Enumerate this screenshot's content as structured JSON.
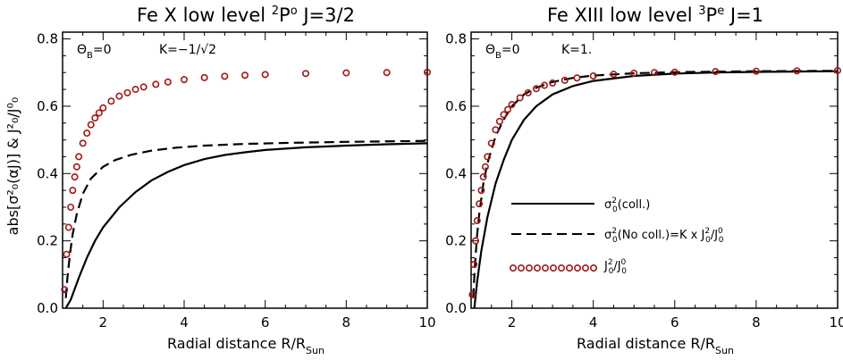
{
  "chart_data": [
    {
      "type": "line",
      "title_parts": {
        "pre": "Fe X   low level   ",
        "sup": "2",
        "main": "P",
        "sup2": "o",
        "post": "   J=3/2"
      },
      "xlabel": {
        "main": "Radial distance R/R",
        "sub": "Sun"
      },
      "ylabel": "abs[σ²₀(αJ)]  &  J²₀/J⁰₀",
      "xlim": [
        1,
        10
      ],
      "ylim": [
        0,
        0.82
      ],
      "x_ticks": [
        2,
        4,
        6,
        8,
        10
      ],
      "y_ticks": [
        0.0,
        0.2,
        0.4,
        0.6,
        0.8
      ],
      "y_tick_labels": [
        "0.0",
        "0.2",
        "0.4",
        "0.6",
        "0.8"
      ],
      "annotation": {
        "theta": "Θ",
        "theta_sub": "B",
        "theta_eq": "=0",
        "k_text": "K=−1/√2"
      },
      "series": [
        {
          "name": "σ²₀(coll.)",
          "style": "solid",
          "color": "#000000",
          "x": [
            1.08,
            1.2,
            1.4,
            1.6,
            1.8,
            2.0,
            2.4,
            2.8,
            3.2,
            3.6,
            4.0,
            4.5,
            5.0,
            5.5,
            6.0,
            7.0,
            8.0,
            9.0,
            10.0
          ],
          "values": [
            0.0,
            0.025,
            0.09,
            0.15,
            0.2,
            0.24,
            0.3,
            0.345,
            0.38,
            0.405,
            0.425,
            0.443,
            0.455,
            0.463,
            0.47,
            0.478,
            0.483,
            0.487,
            0.49
          ]
        },
        {
          "name": "σ²₀(No coll.)=K x J²₀/J⁰₀",
          "style": "dashed",
          "color": "#000000",
          "x": [
            1.08,
            1.12,
            1.18,
            1.25,
            1.35,
            1.5,
            1.7,
            2.0,
            2.3,
            2.7,
            3.2,
            3.8,
            4.5,
            5.5,
            6.5,
            8.0,
            10.0
          ],
          "values": [
            0.03,
            0.09,
            0.16,
            0.22,
            0.28,
            0.34,
            0.385,
            0.42,
            0.44,
            0.456,
            0.468,
            0.477,
            0.483,
            0.488,
            0.491,
            0.494,
            0.497
          ]
        },
        {
          "name": "J²₀/J⁰₀",
          "style": "circles",
          "color": "#a01818",
          "x": [
            1.05,
            1.1,
            1.15,
            1.2,
            1.25,
            1.3,
            1.35,
            1.4,
            1.5,
            1.6,
            1.7,
            1.8,
            1.9,
            2.0,
            2.2,
            2.4,
            2.6,
            2.8,
            3.0,
            3.3,
            3.6,
            4.0,
            4.5,
            5.0,
            5.5,
            6.0,
            7.0,
            8.0,
            9.0,
            10.0
          ],
          "values": [
            0.055,
            0.16,
            0.24,
            0.3,
            0.35,
            0.39,
            0.42,
            0.45,
            0.49,
            0.52,
            0.545,
            0.565,
            0.58,
            0.595,
            0.615,
            0.63,
            0.64,
            0.65,
            0.657,
            0.665,
            0.672,
            0.679,
            0.685,
            0.689,
            0.692,
            0.694,
            0.697,
            0.699,
            0.7,
            0.701
          ]
        }
      ]
    },
    {
      "type": "line",
      "title_parts": {
        "pre": "Fe XIII   low level   ",
        "sup": "3",
        "main": "P",
        "sup2": "e",
        "post": "   J=1"
      },
      "xlabel": {
        "main": "Radial distance R/R",
        "sub": "Sun"
      },
      "xlim": [
        1,
        10
      ],
      "ylim": [
        0,
        0.82
      ],
      "x_ticks": [
        2,
        4,
        6,
        8,
        10
      ],
      "y_ticks": [
        0.0,
        0.2,
        0.4,
        0.6,
        0.8
      ],
      "y_tick_labels": [
        "0.0",
        "0.2",
        "0.4",
        "0.6",
        "0.8"
      ],
      "annotation": {
        "theta": "Θ",
        "theta_sub": "B",
        "theta_eq": "=0",
        "k_text": "K=1."
      },
      "series": [
        {
          "name": "σ²₀(coll.)",
          "style": "solid",
          "color": "#000000",
          "x": [
            1.08,
            1.15,
            1.25,
            1.4,
            1.6,
            1.8,
            2.0,
            2.3,
            2.6,
            3.0,
            3.5,
            4.0,
            5.0,
            6.0,
            7.0,
            8.0,
            10.0
          ],
          "values": [
            0.0,
            0.08,
            0.17,
            0.27,
            0.37,
            0.44,
            0.5,
            0.56,
            0.6,
            0.635,
            0.66,
            0.675,
            0.69,
            0.697,
            0.7,
            0.702,
            0.704
          ]
        },
        {
          "name": "σ²₀(No coll.)=K x J²₀/J⁰₀",
          "style": "dashed",
          "color": "#000000",
          "x": [
            1.05,
            1.1,
            1.15,
            1.2,
            1.3,
            1.4,
            1.6,
            1.8,
            2.0,
            2.3,
            2.6,
            3.0,
            3.5,
            4.0,
            5.0,
            6.0,
            8.0,
            10.0
          ],
          "values": [
            0.03,
            0.14,
            0.22,
            0.28,
            0.37,
            0.43,
            0.51,
            0.56,
            0.6,
            0.635,
            0.655,
            0.672,
            0.684,
            0.691,
            0.698,
            0.701,
            0.704,
            0.705
          ]
        },
        {
          "name": "J²₀/J⁰₀",
          "style": "circles",
          "color": "#a01818",
          "x": [
            1.03,
            1.07,
            1.11,
            1.15,
            1.2,
            1.25,
            1.3,
            1.35,
            1.4,
            1.5,
            1.6,
            1.7,
            1.8,
            1.9,
            2.0,
            2.2,
            2.4,
            2.6,
            2.8,
            3.0,
            3.3,
            3.6,
            4.0,
            4.5,
            5.0,
            5.5,
            6.0,
            7.0,
            8.0,
            9.0,
            10.0
          ],
          "values": [
            0.04,
            0.13,
            0.2,
            0.26,
            0.31,
            0.35,
            0.39,
            0.42,
            0.45,
            0.49,
            0.53,
            0.555,
            0.575,
            0.59,
            0.605,
            0.625,
            0.64,
            0.652,
            0.662,
            0.669,
            0.677,
            0.684,
            0.69,
            0.695,
            0.698,
            0.7,
            0.701,
            0.703,
            0.704,
            0.705,
            0.706
          ]
        }
      ],
      "legend": {
        "position": "lower-right",
        "entries": [
          {
            "style": "solid",
            "label_main": "σ",
            "label_sup": "2",
            "label_sub": "0",
            "label_rest": "(coll.)"
          },
          {
            "style": "dashed",
            "label_main": "σ",
            "label_sup": "2",
            "label_sub": "0",
            "label_rest": "(No coll.)=K x J",
            "label_sup2": "2",
            "label_sub2": "0",
            "label_rest2": "/J",
            "label_sup3": "0",
            "label_sub3": "0"
          },
          {
            "style": "circles",
            "label_main": "J",
            "label_sup": "2",
            "label_sub": "0",
            "label_rest": "/J",
            "label_sup2": "0",
            "label_sub2": "0"
          }
        ]
      }
    }
  ]
}
